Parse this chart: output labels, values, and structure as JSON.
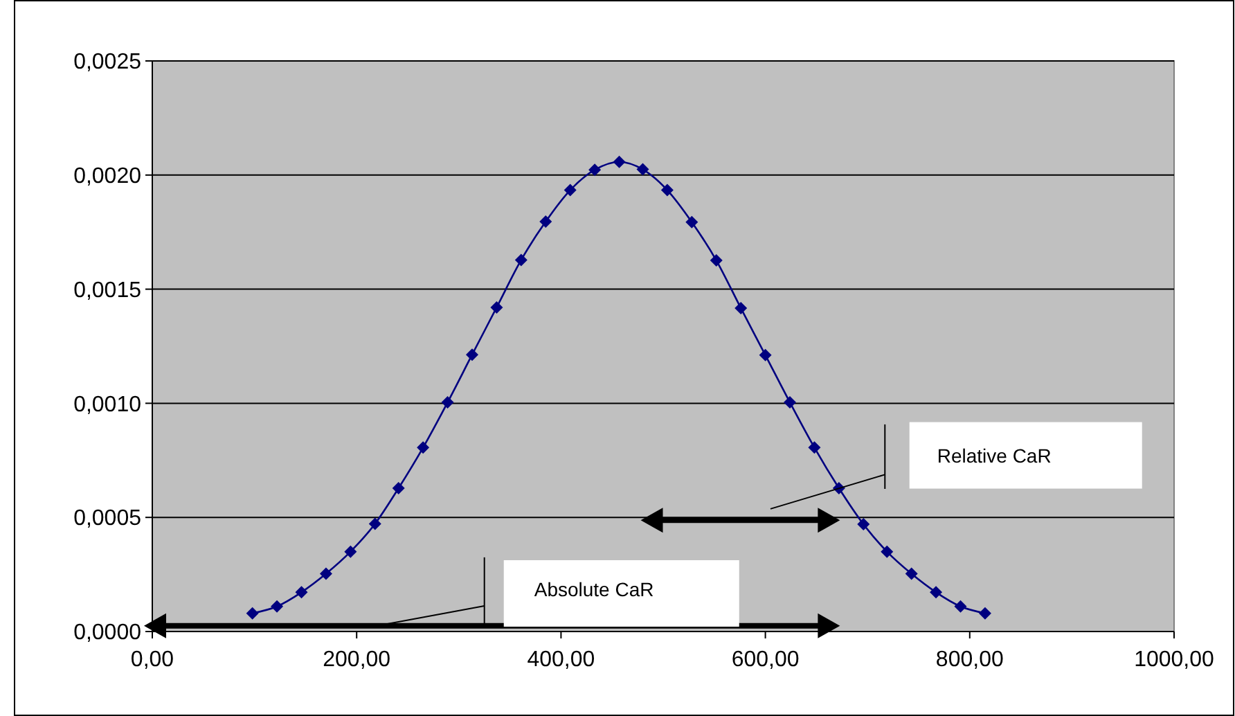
{
  "chart_data": {
    "type": "line",
    "x": [
      98,
      122,
      146,
      170,
      194,
      218,
      241,
      265,
      289,
      313,
      337,
      361,
      385,
      409,
      433,
      457,
      480,
      504,
      528,
      552,
      576,
      600,
      624,
      648,
      672,
      696,
      719,
      743,
      767,
      791,
      815
    ],
    "series": [
      {
        "color": "#000080",
        "values": [
          8e-05,
          0.00011,
          0.000172,
          0.000253,
          0.00035,
          0.000472,
          0.000628,
          0.000806,
          0.001004,
          0.001213,
          0.00142,
          0.001628,
          0.001796,
          0.001934,
          0.002023,
          0.002058,
          0.002025,
          0.001934,
          0.001794,
          0.001626,
          0.001417,
          0.001211,
          0.001004,
          0.000806,
          0.000628,
          0.00047,
          0.00035,
          0.000253,
          0.000172,
          0.00011,
          8e-05
        ]
      }
    ],
    "xlim": [
      0,
      1000
    ],
    "xticks": [
      {
        "value": 0,
        "label": "0,00"
      },
      {
        "value": 200,
        "label": "200,00"
      },
      {
        "value": 400,
        "label": "400,00"
      },
      {
        "value": 600,
        "label": "600,00"
      },
      {
        "value": 800,
        "label": "800,00"
      },
      {
        "value": 1000,
        "label": "1000,00"
      }
    ],
    "ylim": [
      0,
      0.0025
    ],
    "yticks": [
      {
        "value": 0,
        "label": "0,0000"
      },
      {
        "value": 0.0005,
        "label": "0,0005"
      },
      {
        "value": 0.001,
        "label": "0,0010"
      },
      {
        "value": 0.0015,
        "label": "0,0015"
      },
      {
        "value": 0.002,
        "label": "0,0020"
      },
      {
        "value": 0.0025,
        "label": "0,0025"
      }
    ],
    "grid": "y",
    "marker": "diamond",
    "line_style": "solid",
    "annotations": [
      "Relative CaR",
      "Absolute CaR"
    ]
  }
}
